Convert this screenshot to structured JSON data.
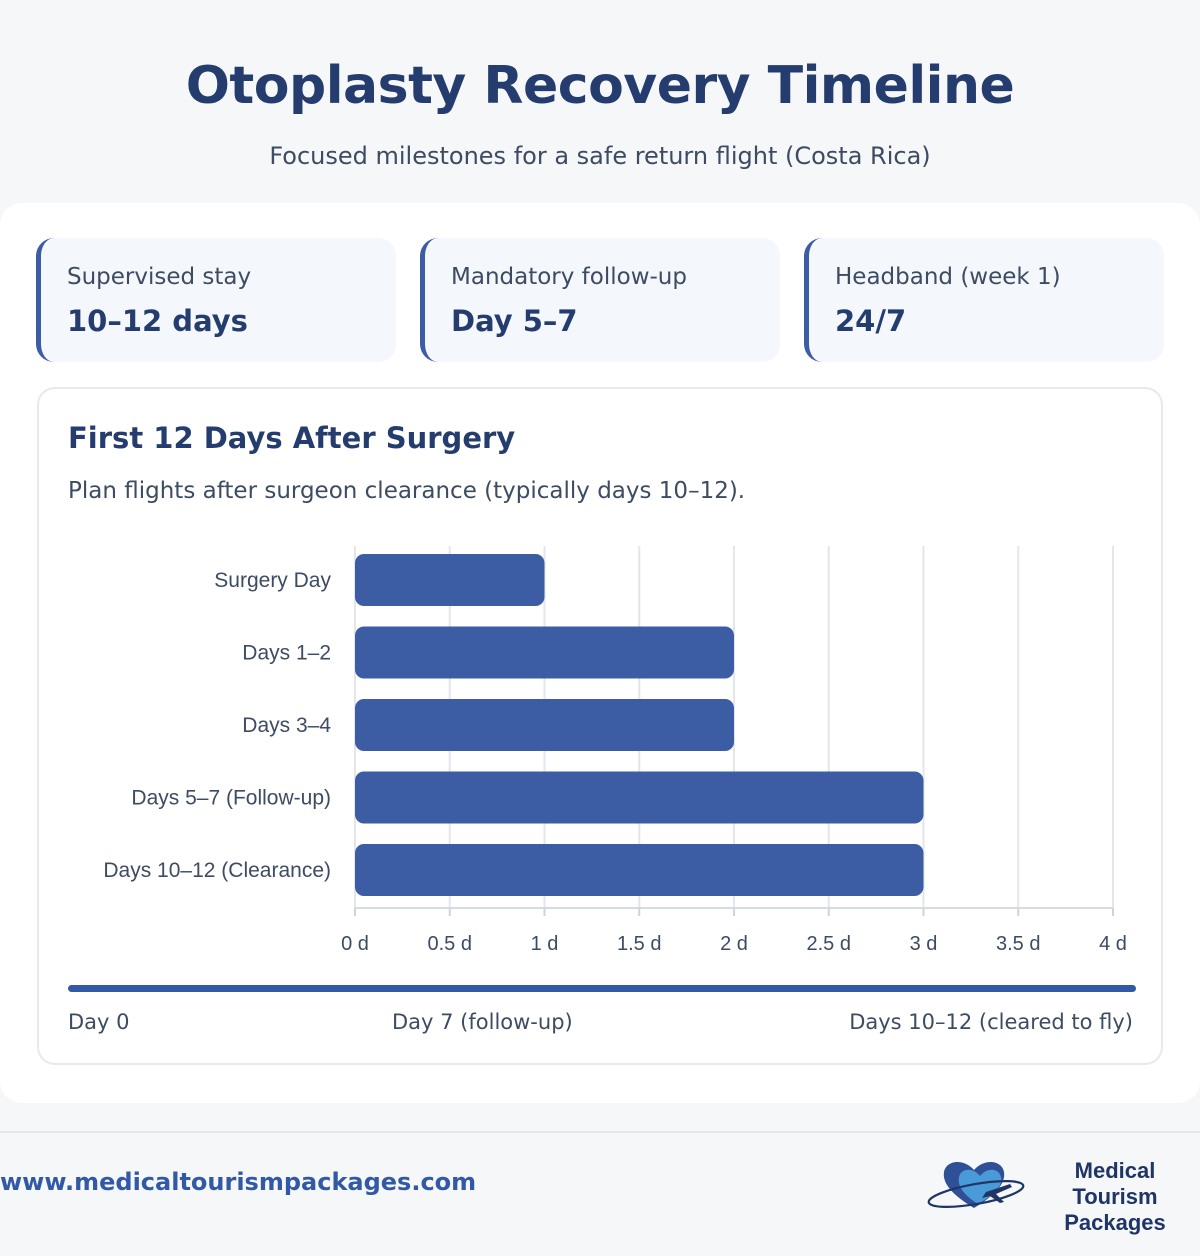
{
  "header": {
    "title": "Otoplasty Recovery Timeline",
    "subtitle": "Focused milestones for a safe return flight (Costa Rica)"
  },
  "stats": [
    {
      "label": "Supervised stay",
      "value": "10–12 days"
    },
    {
      "label": "Mandatory follow-up",
      "value": "Day 5–7"
    },
    {
      "label": "Headband (week 1)",
      "value": "24/7"
    }
  ],
  "chart_card": {
    "title": "First 12 Days After Surgery",
    "subtitle": "Plan flights after surgeon clearance (typically days 10–12)."
  },
  "chart_data": {
    "type": "bar",
    "orientation": "horizontal",
    "categories": [
      "Surgery Day",
      "Days 1–2",
      "Days 3–4",
      "Days 5–7 (Follow-up)",
      "Days 10–12 (Clearance)"
    ],
    "values": [
      1,
      2,
      2,
      3,
      3
    ],
    "xlim": [
      0,
      4
    ],
    "xticks": [
      0,
      0.5,
      1,
      1.5,
      2,
      2.5,
      3,
      3.5,
      4
    ],
    "xtick_labels": [
      "0 d",
      "0.5 d",
      "1 d",
      "1.5 d",
      "2 d",
      "2.5 d",
      "3 d",
      "3.5 d",
      "4 d"
    ],
    "grid": true,
    "bar_color": "#3c5ca3"
  },
  "timeline": {
    "start": "Day 0",
    "middle": "Day 7 (follow-up)",
    "end": "Days 10–12 (cleared to fly)"
  },
  "footer": {
    "website": "www.medicaltourismpackages.com",
    "brand_line1": "Medical Tourism",
    "brand_line2": "Packages"
  }
}
